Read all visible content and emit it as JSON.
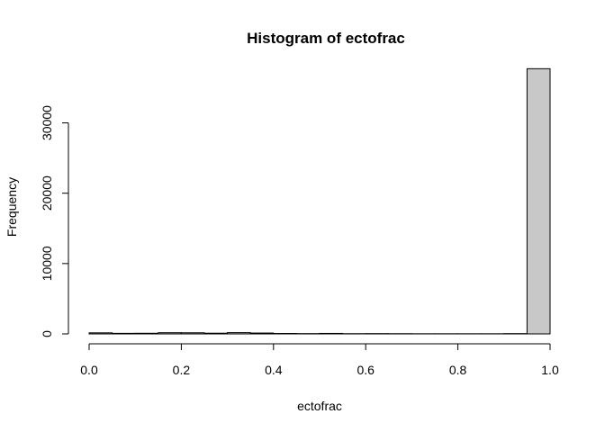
{
  "chart_data": {
    "type": "bar",
    "title": "Histogram of ectofrac",
    "xlabel": "ectofrac",
    "ylabel": "Frequency",
    "xlim": [
      0,
      1
    ],
    "ylim": [
      0,
      38000
    ],
    "x_ticks": [
      "0.0",
      "0.2",
      "0.4",
      "0.6",
      "0.8",
      "1.0"
    ],
    "x_tick_values": [
      0,
      0.2,
      0.4,
      0.6,
      0.8,
      1.0
    ],
    "y_ticks": [
      "0",
      "10000",
      "20000",
      "30000"
    ],
    "y_tick_values": [
      0,
      10000,
      20000,
      30000
    ],
    "bin_edges": [
      0,
      0.05,
      0.1,
      0.15,
      0.2,
      0.25,
      0.3,
      0.35,
      0.4,
      0.45,
      0.5,
      0.55,
      0.6,
      0.65,
      0.7,
      0.75,
      0.8,
      0.85,
      0.9,
      0.95,
      1.0
    ],
    "values": [
      150,
      80,
      90,
      170,
      160,
      100,
      180,
      120,
      60,
      40,
      70,
      30,
      40,
      30,
      20,
      20,
      20,
      20,
      40,
      37700
    ],
    "bar_fill": "#c8c8c8",
    "bar_stroke": "#000000",
    "grid": false,
    "legend": "none"
  }
}
